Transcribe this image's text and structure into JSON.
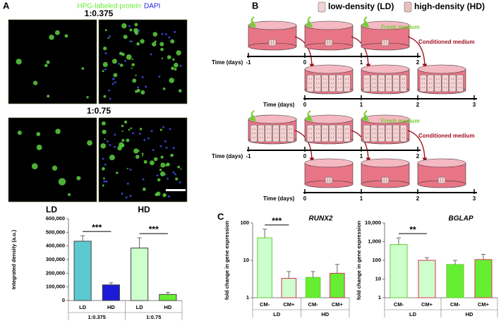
{
  "panel_a": {
    "label": "A",
    "legend": [
      "HPG-labeled protein",
      "DAPI"
    ],
    "ratios": [
      "1:0.375",
      "1:0.75"
    ],
    "columns": [
      "LD",
      "HD"
    ]
  },
  "panel_b": {
    "label": "B",
    "legend": [
      "low-density (LD)",
      "high-density (HD)"
    ],
    "fresh_medium": [
      "Fresh medium",
      "Fresh medium"
    ],
    "conditioned_medium": [
      "Conditioned medium",
      "Conditioned medium"
    ],
    "timelines": [
      {
        "label": "Time (days)",
        "ticks": [
          -1,
          0,
          1,
          2
        ]
      },
      {
        "label": "Time (days)",
        "ticks": [
          0,
          1,
          2,
          3
        ]
      },
      {
        "label": "Time (days)",
        "ticks": [
          -1,
          0,
          1,
          2
        ]
      },
      {
        "label": "Time (days)",
        "ticks": [
          0,
          1,
          2,
          3
        ]
      }
    ]
  },
  "panel_c": {
    "label": "C"
  },
  "chart_data": [
    {
      "type": "bar",
      "y_label": "Integrated density (a.u.)",
      "categories": [
        "LD",
        "HD",
        "LD",
        "HD"
      ],
      "group_labels": [
        "1:0.375",
        "1:0.75"
      ],
      "values": [
        435000,
        115000,
        385000,
        45000
      ],
      "errors": [
        40000,
        15000,
        75000,
        15000
      ],
      "colors": [
        "#5cc8d0",
        "#1a1ad8",
        "#ccffcc",
        "#66ee33"
      ],
      "edge_colors": [
        "#444444",
        "#444444",
        "#444444",
        "#444444"
      ],
      "significance": [
        "***",
        "***"
      ],
      "ylim": [
        0,
        600000
      ],
      "yticks": [
        0,
        {
          "value": 100000,
          "label": "100,000"
        },
        {
          "value": 200000,
          "label": "200,000"
        },
        {
          "value": 300000,
          "label": "300,000"
        },
        {
          "value": 400000,
          "label": "400,000"
        },
        {
          "value": 500000,
          "label": "500,000"
        },
        {
          "value": 600000,
          "label": "600,000"
        }
      ]
    },
    {
      "type": "bar",
      "title": "RUNX2",
      "y_label": "fold change in gene expression",
      "log_scale": true,
      "categories": [
        "CM-",
        "CM+",
        "CM-",
        "CM+"
      ],
      "group_labels": [
        "LD",
        "HD"
      ],
      "values": [
        40,
        3.3,
        3.5,
        4.5
      ],
      "errors": [
        28,
        1.7,
        1.5,
        3.3
      ],
      "colors": [
        "#ccffcc",
        "#ccffcc",
        "#66ee33",
        "#66ee33"
      ],
      "edge_colors": [
        "#66cc33",
        "#e03050",
        "#66cc33",
        "#e03050"
      ],
      "significance": [
        "***"
      ],
      "ylim": [
        1,
        100
      ],
      "yticks": [
        1,
        10,
        100
      ]
    },
    {
      "type": "bar",
      "title": "BGLAP",
      "y_label": "fold change in gene expression",
      "log_scale": true,
      "categories": [
        "CM-",
        "CM+",
        "CM-",
        "CM+"
      ],
      "group_labels": [
        "LD",
        "HD"
      ],
      "values": [
        700,
        100,
        60,
        110
      ],
      "errors": [
        900,
        40,
        40,
        100
      ],
      "colors": [
        "#ccffcc",
        "#ccffcc",
        "#66ee33",
        "#66ee33"
      ],
      "edge_colors": [
        "#66cc33",
        "#e03050",
        "#66cc33",
        "#e03050"
      ],
      "significance": [
        "**"
      ],
      "ylim": [
        1,
        10000
      ],
      "yticks": [
        1,
        10,
        100,
        {
          "value": 1000,
          "label": "1,000"
        },
        {
          "value": 10000,
          "label": "10,000"
        }
      ]
    }
  ]
}
